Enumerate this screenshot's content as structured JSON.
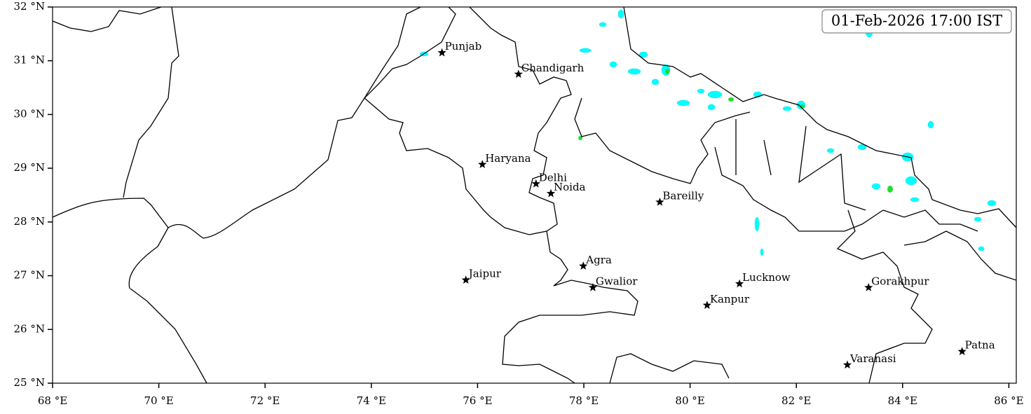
{
  "map": {
    "timestamp": "01-Feb-2026 17:00 IST",
    "xlim": [
      68,
      86.14
    ],
    "ylim": [
      25,
      32
    ],
    "xticks": [
      {
        "value": 68,
        "label": "68 °E"
      },
      {
        "value": 70,
        "label": "70 °E"
      },
      {
        "value": 72,
        "label": "72 °E"
      },
      {
        "value": 74,
        "label": "74 °E"
      },
      {
        "value": 76,
        "label": "76 °E"
      },
      {
        "value": 78,
        "label": "78 °E"
      },
      {
        "value": 80,
        "label": "80 °E"
      },
      {
        "value": 82,
        "label": "82 °E"
      },
      {
        "value": 84,
        "label": "84 °E"
      },
      {
        "value": 86,
        "label": "86 °E"
      }
    ],
    "yticks": [
      {
        "value": 25,
        "label": "25 °N"
      },
      {
        "value": 26,
        "label": "26 °N"
      },
      {
        "value": 27,
        "label": "27 °N"
      },
      {
        "value": 28,
        "label": "28 °N"
      },
      {
        "value": 29,
        "label": "29 °N"
      },
      {
        "value": 30,
        "label": "30 °N"
      },
      {
        "value": 31,
        "label": "31 °N"
      },
      {
        "value": 32,
        "label": "32 °N"
      }
    ],
    "cities": [
      {
        "name": "Punjab",
        "lon": 75.33,
        "lat": 31.15
      },
      {
        "name": "Chandigarh",
        "lon": 76.77,
        "lat": 30.75
      },
      {
        "name": "Haryana",
        "lon": 76.09,
        "lat": 29.07
      },
      {
        "name": "Delhi",
        "lon": 77.1,
        "lat": 28.71
      },
      {
        "name": "Noida",
        "lon": 77.38,
        "lat": 28.53
      },
      {
        "name": "Bareilly",
        "lon": 79.43,
        "lat": 28.37
      },
      {
        "name": "Agra",
        "lon": 77.99,
        "lat": 27.18
      },
      {
        "name": "Jaipur",
        "lon": 75.78,
        "lat": 26.92
      },
      {
        "name": "Gwalior",
        "lon": 78.17,
        "lat": 26.78
      },
      {
        "name": "Lucknow",
        "lon": 80.93,
        "lat": 26.85
      },
      {
        "name": "Kanpur",
        "lon": 80.32,
        "lat": 26.45
      },
      {
        "name": "Gorakhpur",
        "lon": 83.36,
        "lat": 26.78
      },
      {
        "name": "Patna",
        "lon": 85.12,
        "lat": 25.59
      },
      {
        "name": "Varanasi",
        "lon": 82.96,
        "lat": 25.34
      }
    ]
  }
}
